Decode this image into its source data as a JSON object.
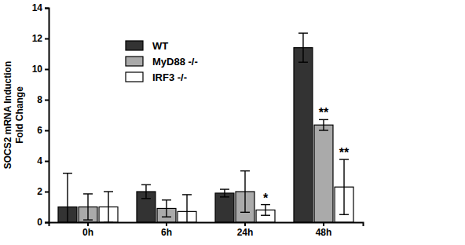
{
  "chart_data": {
    "type": "bar",
    "y_label": "SOCS2 mRNA Induction\nFold Change",
    "categories": [
      "0h",
      "6h",
      "24h",
      "48h"
    ],
    "series": [
      {
        "name": "WT",
        "color": "#333333",
        "values": [
          1.0,
          2.0,
          1.9,
          11.4
        ],
        "errors": [
          2.2,
          0.45,
          0.25,
          0.95
        ],
        "significance": [
          null,
          null,
          null,
          null
        ]
      },
      {
        "name": "MyD88 -/-",
        "color": "#aaaaaa",
        "values": [
          1.0,
          0.9,
          2.0,
          6.35
        ],
        "errors": [
          0.85,
          0.55,
          1.35,
          0.35
        ],
        "significance": [
          null,
          null,
          null,
          "**"
        ]
      },
      {
        "name": "IRF3 -/-",
        "color": "#ffffff",
        "values": [
          1.0,
          0.7,
          0.8,
          2.3
        ],
        "errors": [
          1.0,
          1.1,
          0.35,
          1.8
        ],
        "significance": [
          null,
          null,
          "*",
          "**"
        ]
      }
    ],
    "ylim": [
      0,
      14
    ],
    "yticks": [
      0,
      2,
      4,
      6,
      8,
      10,
      12,
      14
    ],
    "grid": false,
    "legend": "top"
  }
}
